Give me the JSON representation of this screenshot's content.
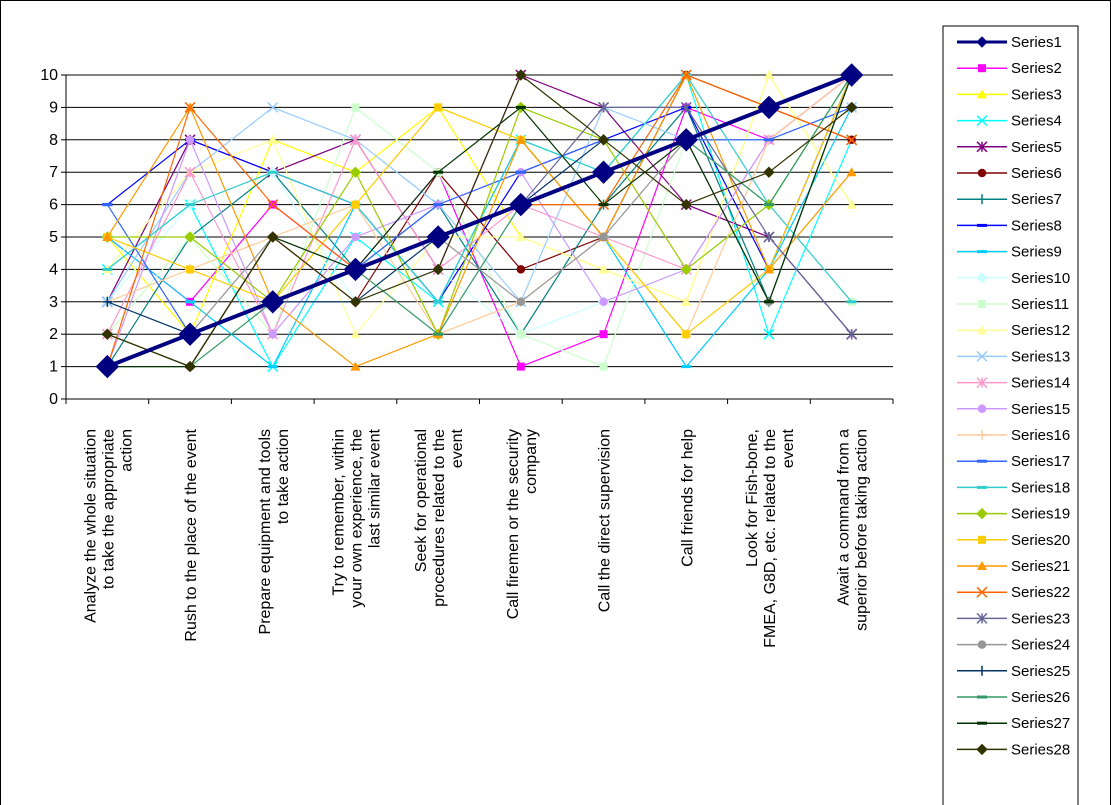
{
  "chart_data": {
    "type": "line",
    "title": "",
    "xlabel": "",
    "ylabel": "",
    "ylim": [
      0,
      10
    ],
    "yticks": [
      0,
      1,
      2,
      3,
      4,
      5,
      6,
      7,
      8,
      9,
      10
    ],
    "grid": true,
    "legend_position": "right",
    "categories": [
      [
        "Analyze the whole situation",
        "to take the appropriate",
        "action"
      ],
      [
        "Rush to the place of the event"
      ],
      [
        "Prepare equipment and tools",
        "to take action"
      ],
      [
        "Try to remember, within",
        "your own experience, the",
        "last similar event"
      ],
      [
        "Seek for operational",
        "procedures related to the",
        "event"
      ],
      [
        "Call firemen or the security",
        "company"
      ],
      [
        "Call the direct supervision"
      ],
      [
        "Call friends for help"
      ],
      [
        "Look for Fish-bone,",
        "FMEA, G8D, etc. related to the",
        "event"
      ],
      [
        "Await a command from a",
        "superior before taking action"
      ]
    ],
    "series": [
      {
        "name": "Series1",
        "color": "#000080",
        "marker": "diamond",
        "values": [
          1,
          2,
          3,
          4,
          5,
          6,
          7,
          8,
          9,
          10
        ]
      },
      {
        "name": "Series2",
        "color": "#ff00ff",
        "marker": "square",
        "values": [
          5,
          3,
          6,
          4,
          7,
          1,
          2,
          9,
          8,
          10
        ]
      },
      {
        "name": "Series3",
        "color": "#ffff00",
        "marker": "triangle",
        "values": [
          5,
          2,
          8,
          7,
          9,
          5,
          4,
          3,
          10,
          6
        ]
      },
      {
        "name": "Series4",
        "color": "#00ffff",
        "marker": "x",
        "values": [
          4,
          6,
          1,
          5,
          3,
          8,
          7,
          10,
          2,
          8
        ]
      },
      {
        "name": "Series5",
        "color": "#800080",
        "marker": "star",
        "values": [
          3,
          8,
          7,
          8,
          4,
          10,
          9,
          6,
          5,
          2
        ]
      },
      {
        "name": "Series6",
        "color": "#800000",
        "marker": "circle",
        "values": [
          2,
          1,
          5,
          3,
          7,
          4,
          5,
          10,
          9,
          8
        ]
      },
      {
        "name": "Series7",
        "color": "#008080",
        "marker": "plus",
        "values": [
          1,
          5,
          7,
          4,
          6,
          2,
          6,
          9,
          3,
          10
        ]
      },
      {
        "name": "Series8",
        "color": "#0000ff",
        "marker": "dash",
        "values": [
          6,
          8,
          7,
          6,
          3,
          7,
          8,
          9,
          4,
          10
        ]
      },
      {
        "name": "Series9",
        "color": "#00ccff",
        "marker": "dash",
        "values": [
          5,
          3,
          1,
          6,
          3,
          8,
          5,
          1,
          4,
          9
        ]
      },
      {
        "name": "Series10",
        "color": "#ccffff",
        "marker": "diamond",
        "values": [
          3,
          6,
          7,
          3,
          4,
          2,
          3,
          4,
          6,
          10
        ]
      },
      {
        "name": "Series11",
        "color": "#ccffcc",
        "marker": "square",
        "values": [
          2,
          5,
          2,
          9,
          7,
          2,
          1,
          8,
          6,
          3
        ]
      },
      {
        "name": "Series12",
        "color": "#ffff99",
        "marker": "triangle",
        "values": [
          4,
          7,
          8,
          2,
          5,
          5,
          4,
          3,
          10,
          6
        ]
      },
      {
        "name": "Series13",
        "color": "#99ccff",
        "marker": "x",
        "values": [
          3,
          7,
          9,
          8,
          6,
          3,
          9,
          8,
          8,
          9
        ]
      },
      {
        "name": "Series14",
        "color": "#ff99cc",
        "marker": "star",
        "values": [
          2,
          7,
          2,
          8,
          4,
          6,
          5,
          4,
          8,
          10
        ]
      },
      {
        "name": "Series15",
        "color": "#cc99ff",
        "marker": "circle",
        "values": [
          1,
          8,
          2,
          5,
          6,
          7,
          3,
          4,
          8,
          10
        ]
      },
      {
        "name": "Series16",
        "color": "#ffcc99",
        "marker": "plus",
        "values": [
          3,
          4,
          5,
          6,
          2,
          3,
          5,
          2,
          8,
          10
        ]
      },
      {
        "name": "Series17",
        "color": "#3366ff",
        "marker": "dash",
        "values": [
          6,
          2,
          3,
          4,
          6,
          7,
          8,
          8,
          8,
          9
        ]
      },
      {
        "name": "Series18",
        "color": "#33cccc",
        "marker": "dash",
        "values": [
          4,
          6,
          7,
          6,
          3,
          8,
          7,
          10,
          6,
          3
        ]
      },
      {
        "name": "Series19",
        "color": "#99cc00",
        "marker": "diamond",
        "values": [
          5,
          5,
          3,
          7,
          2,
          9,
          8,
          4,
          6,
          10
        ]
      },
      {
        "name": "Series20",
        "color": "#ffcc00",
        "marker": "square",
        "values": [
          5,
          4,
          3,
          6,
          9,
          8,
          5,
          2,
          4,
          10
        ]
      },
      {
        "name": "Series21",
        "color": "#ff9900",
        "marker": "triangle",
        "values": [
          5,
          9,
          3,
          1,
          2,
          8,
          5,
          10,
          4,
          7
        ]
      },
      {
        "name": "Series22",
        "color": "#ff6600",
        "marker": "x",
        "values": [
          1,
          9,
          6,
          4,
          5,
          6,
          6,
          10,
          9,
          8
        ]
      },
      {
        "name": "Series23",
        "color": "#666699",
        "marker": "star",
        "values": [
          1,
          2,
          3,
          4,
          5,
          6,
          9,
          9,
          5,
          2
        ]
      },
      {
        "name": "Series24",
        "color": "#969696",
        "marker": "circle",
        "values": [
          1,
          2,
          5,
          4,
          5,
          3,
          5,
          8,
          3,
          10
        ]
      },
      {
        "name": "Series25",
        "color": "#003366",
        "marker": "plus",
        "values": [
          3,
          2,
          3,
          3,
          5,
          6,
          8,
          8,
          9,
          10
        ]
      },
      {
        "name": "Series26",
        "color": "#339966",
        "marker": "dash",
        "values": [
          2,
          1,
          3,
          4,
          2,
          6,
          7,
          8,
          6,
          10
        ]
      },
      {
        "name": "Series27",
        "color": "#003300",
        "marker": "dash",
        "values": [
          1,
          1,
          5,
          4,
          7,
          9,
          6,
          8,
          3,
          10
        ]
      },
      {
        "name": "Series28",
        "color": "#333300",
        "marker": "diamond",
        "values": [
          2,
          1,
          5,
          3,
          4,
          10,
          8,
          6,
          7,
          9
        ]
      }
    ]
  }
}
